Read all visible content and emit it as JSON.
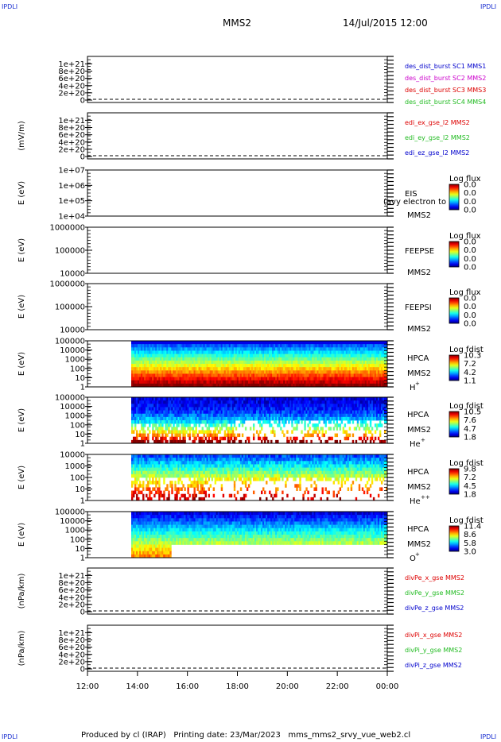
{
  "header": {
    "corner_label": "IPDLI",
    "spacecraft": "MMS2",
    "datetime": "14/Jul/2015 12:00"
  },
  "footer": {
    "text": "Produced by cl (IRAP)   Printing date: 23/Mar/2023   mms_mms2_srvy_vue_web2.cl"
  },
  "colors": {
    "blue": "#0000cc",
    "magenta": "#cc00cc",
    "red": "#dd0000",
    "green": "#22bb22"
  },
  "chart_data": [
    {
      "type": "line",
      "ylabel": "",
      "yticks": [
        "0",
        "2e+20",
        "4e+20",
        "6e+20",
        "8e+20",
        "1e+21"
      ],
      "ylim": [
        0,
        1.1e+21
      ],
      "series": [
        {
          "name": "des_dist_burst SC1 MMS1",
          "color": "#0000cc",
          "values": []
        },
        {
          "name": "des_dist_burst SC2 MMS2",
          "color": "#cc00cc",
          "values": []
        },
        {
          "name": "des_dist_burst SC3 MMS3",
          "color": "#dd0000",
          "values": []
        },
        {
          "name": "des_dist_burst SC4 MMS4",
          "color": "#22bb22",
          "values": []
        }
      ]
    },
    {
      "type": "line",
      "ylabel": "(mV/m)",
      "yticks": [
        "0",
        "2e+20",
        "4e+20",
        "6e+20",
        "8e+20",
        "1e+21"
      ],
      "ylim": [
        0,
        1.1e+21
      ],
      "series": [
        {
          "name": "edi_ex_gse_l2 MMS2",
          "color": "#dd0000",
          "values": []
        },
        {
          "name": "edi_ey_gse_l2 MMS2",
          "color": "#22bb22",
          "values": []
        },
        {
          "name": "edi_ez_gse_l2 MMS2",
          "color": "#0000cc",
          "values": []
        }
      ]
    },
    {
      "type": "heatmap",
      "ylabel": "E (eV)",
      "yticks": [
        "1e+04",
        "1e+05",
        "1e+06",
        "1e+07"
      ],
      "scale": "log",
      "right_labels": [
        "EIS",
        "MMS2"
      ],
      "overlay_text": "(avy electron to",
      "colorbar": {
        "title": "Log flux",
        "ticks": [
          "0.0",
          "0.0",
          "0.0",
          "0.0"
        ]
      },
      "data": []
    },
    {
      "type": "heatmap",
      "ylabel": "E (eV)",
      "yticks": [
        "10000",
        "100000",
        "1000000"
      ],
      "scale": "log",
      "right_labels": [
        "FEEPSE",
        "MMS2"
      ],
      "colorbar": {
        "title": "Log flux",
        "ticks": [
          "0.0",
          "0.0",
          "0.0",
          "0.0"
        ]
      },
      "data": []
    },
    {
      "type": "heatmap",
      "ylabel": "E (eV)",
      "yticks": [
        "10000",
        "100000",
        "1000000"
      ],
      "scale": "log",
      "right_labels": [
        "FEEPSI",
        "MMS2"
      ],
      "colorbar": {
        "title": "Log flux",
        "ticks": [
          "0.0",
          "0.0",
          "0.0",
          "0.0"
        ]
      },
      "data": []
    },
    {
      "type": "heatmap",
      "ylabel": "E (eV)",
      "yticks": [
        "1",
        "10",
        "100",
        "1000",
        "10000",
        "100000"
      ],
      "scale": "log",
      "species": "H",
      "charge": "+",
      "right_labels": [
        "HPCA",
        "MMS2"
      ],
      "colorbar": {
        "title": "Log fdist",
        "ticks": [
          "10.3",
          "7.2",
          "4.2",
          "1.1"
        ]
      },
      "data_start": "13:45",
      "data_end": "00:00"
    },
    {
      "type": "heatmap",
      "ylabel": "E (eV)",
      "yticks": [
        "1",
        "10",
        "100",
        "1000",
        "10000",
        "100000"
      ],
      "scale": "log",
      "species": "He",
      "charge": "+",
      "right_labels": [
        "HPCA",
        "MMS2"
      ],
      "colorbar": {
        "title": "Log fdist",
        "ticks": [
          "10.5",
          "7.6",
          "4.7",
          "1.8"
        ]
      },
      "data_start": "13:45",
      "data_end": "00:00"
    },
    {
      "type": "heatmap",
      "ylabel": "E (eV)",
      "yticks": [
        "1",
        "10",
        "100",
        "1000",
        "10000"
      ],
      "scale": "log",
      "species": "He",
      "charge": "++",
      "right_labels": [
        "HPCA",
        "MMS2"
      ],
      "colorbar": {
        "title": "Log fdist",
        "ticks": [
          "9.8",
          "7.2",
          "4.5",
          "1.8"
        ]
      },
      "data_start": "13:45",
      "data_end": "00:00"
    },
    {
      "type": "heatmap",
      "ylabel": "E (eV)",
      "yticks": [
        "1",
        "10",
        "100",
        "1000",
        "10000",
        "100000"
      ],
      "scale": "log",
      "species": "O",
      "charge": "+",
      "right_labels": [
        "HPCA",
        "MMS2"
      ],
      "colorbar": {
        "title": "Log fdist",
        "ticks": [
          "11.4",
          "8.6",
          "5.8",
          "3.0"
        ]
      },
      "data_start": "13:45",
      "data_end": "00:00"
    },
    {
      "type": "line",
      "ylabel": "(nPa/km)",
      "yticks": [
        "0",
        "2e+20",
        "4e+20",
        "6e+20",
        "8e+20",
        "1e+21"
      ],
      "ylim": [
        0,
        1.1e+21
      ],
      "series": [
        {
          "name": "divPe_x_gse MMS2",
          "color": "#dd0000",
          "values": []
        },
        {
          "name": "divPe_y_gse MMS2",
          "color": "#22bb22",
          "values": []
        },
        {
          "name": "divPe_z_gse MMS2",
          "color": "#0000cc",
          "values": []
        }
      ]
    },
    {
      "type": "line",
      "ylabel": "(nPa/km)",
      "yticks": [
        "0",
        "2e+20",
        "4e+20",
        "6e+20",
        "8e+20",
        "1e+21"
      ],
      "ylim": [
        0,
        1.1e+21
      ],
      "series": [
        {
          "name": "divPi_x_gse MMS2",
          "color": "#dd0000",
          "values": []
        },
        {
          "name": "divPi_y_gse MMS2",
          "color": "#22bb22",
          "values": []
        },
        {
          "name": "divPi_z_gse MMS2",
          "color": "#0000cc",
          "values": []
        }
      ]
    }
  ],
  "xaxis": {
    "ticks": [
      "12:00",
      "14:00",
      "16:00",
      "18:00",
      "20:00",
      "22:00",
      "00:00"
    ]
  }
}
